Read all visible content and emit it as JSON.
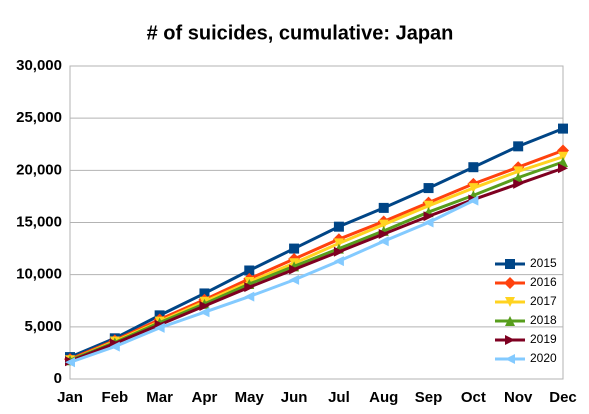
{
  "chart_data": {
    "type": "line",
    "title": "# of suicides, cumulative: Japan",
    "categories": [
      "Jan",
      "Feb",
      "Mar",
      "Apr",
      "May",
      "Jun",
      "Jul",
      "Aug",
      "Sep",
      "Oct",
      "Nov",
      "Dec"
    ],
    "series": [
      {
        "name": "2015",
        "color": "#004586",
        "marker": "square",
        "values": [
          2100,
          3900,
          6100,
          8200,
          10400,
          12500,
          14600,
          16400,
          18300,
          20300,
          22300,
          24000
        ]
      },
      {
        "name": "2016",
        "color": "#ff420e",
        "marker": "diamond",
        "values": [
          1900,
          3700,
          5700,
          7600,
          9600,
          11500,
          13400,
          15100,
          16900,
          18700,
          20300,
          21900
        ]
      },
      {
        "name": "2017",
        "color": "#ffd320",
        "marker": "triangle-down",
        "values": [
          1800,
          3600,
          5500,
          7400,
          9300,
          11100,
          13000,
          14800,
          16600,
          18300,
          19900,
          21300
        ]
      },
      {
        "name": "2018",
        "color": "#579d1c",
        "marker": "triangle-up",
        "values": [
          1800,
          3500,
          5400,
          7200,
          9100,
          10800,
          12500,
          14200,
          16000,
          17600,
          19300,
          20800
        ]
      },
      {
        "name": "2019",
        "color": "#7e0021",
        "marker": "triangle-right",
        "values": [
          1700,
          3400,
          5200,
          7000,
          8800,
          10500,
          12200,
          13900,
          15600,
          17200,
          18700,
          20200
        ]
      },
      {
        "name": "2020",
        "color": "#83caff",
        "marker": "triangle-left",
        "values": [
          1600,
          3100,
          4900,
          6400,
          7900,
          9500,
          11300,
          13200,
          15000,
          17100,
          null,
          null
        ]
      }
    ],
    "ylim": [
      0,
      30000
    ],
    "yticks": [
      0,
      {
        "value": 5000,
        "label": "5,000"
      },
      {
        "value": 10000,
        "label": "10,000"
      },
      {
        "value": 15000,
        "label": "15,000"
      },
      {
        "value": 20000,
        "label": "20,000"
      },
      {
        "value": 25000,
        "label": "25,000"
      },
      {
        "value": 30000,
        "label": "30,000"
      }
    ],
    "grid": true,
    "legend": "lower right"
  }
}
